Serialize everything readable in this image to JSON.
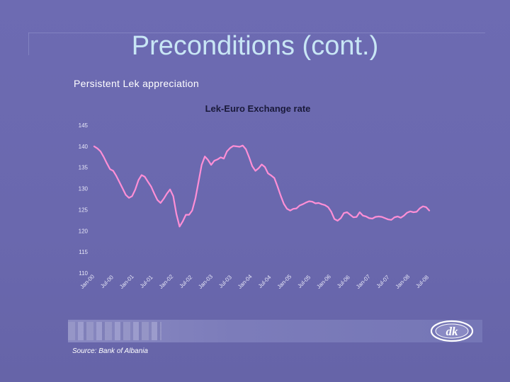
{
  "slide": {
    "title": "Preconditions (cont.)",
    "subtitle": "Persistent Lek appreciation",
    "source": "Source: Bank of Albania",
    "logo_text": "dk"
  },
  "colors": {
    "background": "#6a68ae",
    "title": "#c8e6f5",
    "line": "#ff8fd6",
    "labels": "#e8e8f8"
  },
  "chart_data": {
    "type": "line",
    "title": "Lek-Euro Exchange rate",
    "xlabel": "",
    "ylabel": "",
    "ylim": [
      110,
      145
    ],
    "yticks": [
      145,
      140,
      135,
      130,
      125,
      120,
      115,
      110
    ],
    "xticks": [
      "Jan-00",
      "Jul-00",
      "Jan-01",
      "Jul-01",
      "Jan-02",
      "Jul-02",
      "Jan-03",
      "Jul-03",
      "Jan-04",
      "Jul-04",
      "Jan-05",
      "Jul-05",
      "Jan-06",
      "Jul-06",
      "Jan-07",
      "Jul-07",
      "Jan-08",
      "Jul-08"
    ],
    "grid": false,
    "legend": "none",
    "series": [
      {
        "x": [
          0,
          1,
          2,
          3,
          4,
          5,
          6,
          7,
          8,
          9,
          10,
          11,
          12,
          13,
          14,
          15,
          16,
          17,
          18,
          19,
          20,
          21,
          22,
          23,
          24,
          25,
          26,
          27,
          28,
          29,
          30,
          31,
          32,
          33,
          34,
          35,
          36,
          37,
          38,
          39,
          40,
          41,
          42,
          43,
          44,
          45,
          46,
          47,
          48,
          49,
          50,
          51,
          52,
          53,
          54,
          55,
          56,
          57,
          58,
          59,
          60,
          61,
          62,
          63,
          64,
          65,
          66,
          67,
          68,
          69,
          70,
          71,
          72,
          73,
          74,
          75,
          76,
          77,
          78,
          79,
          80,
          81,
          82,
          83,
          84,
          85,
          86,
          87,
          88,
          89,
          90,
          91,
          92,
          93,
          94,
          95,
          96,
          97,
          98,
          99,
          100,
          101,
          102,
          103,
          104,
          105,
          106
        ],
        "values": [
          140.0,
          139.5,
          138.8,
          137.5,
          136.0,
          134.6,
          134.2,
          133.0,
          131.5,
          130.0,
          128.5,
          127.8,
          128.2,
          129.8,
          132.0,
          133.2,
          132.8,
          131.6,
          130.5,
          128.8,
          127.3,
          126.6,
          127.6,
          128.8,
          129.8,
          128.2,
          124.0,
          121.0,
          122.2,
          123.8,
          123.8,
          124.8,
          127.6,
          131.6,
          135.6,
          137.6,
          136.8,
          135.6,
          136.6,
          136.9,
          137.4,
          137.1,
          138.8,
          139.6,
          140.1,
          140.0,
          139.9,
          140.2,
          139.3,
          137.4,
          135.3,
          134.2,
          134.8,
          135.7,
          135.1,
          133.6,
          133.1,
          132.5,
          130.5,
          128.3,
          126.4,
          125.2,
          124.8,
          125.2,
          125.3,
          126.0,
          126.3,
          126.7,
          127.0,
          126.9,
          126.5,
          126.6,
          126.3,
          126.1,
          125.6,
          124.5,
          122.8,
          122.4,
          123.0,
          124.2,
          124.4,
          123.8,
          123.2,
          123.3,
          124.4,
          123.6,
          123.4,
          123.0,
          122.9,
          123.3,
          123.4,
          123.3,
          123.0,
          122.7,
          122.6,
          123.2,
          123.4,
          123.1,
          123.6,
          124.3,
          124.6,
          124.4,
          124.5,
          125.3,
          125.8,
          125.6,
          124.8
        ]
      }
    ]
  }
}
